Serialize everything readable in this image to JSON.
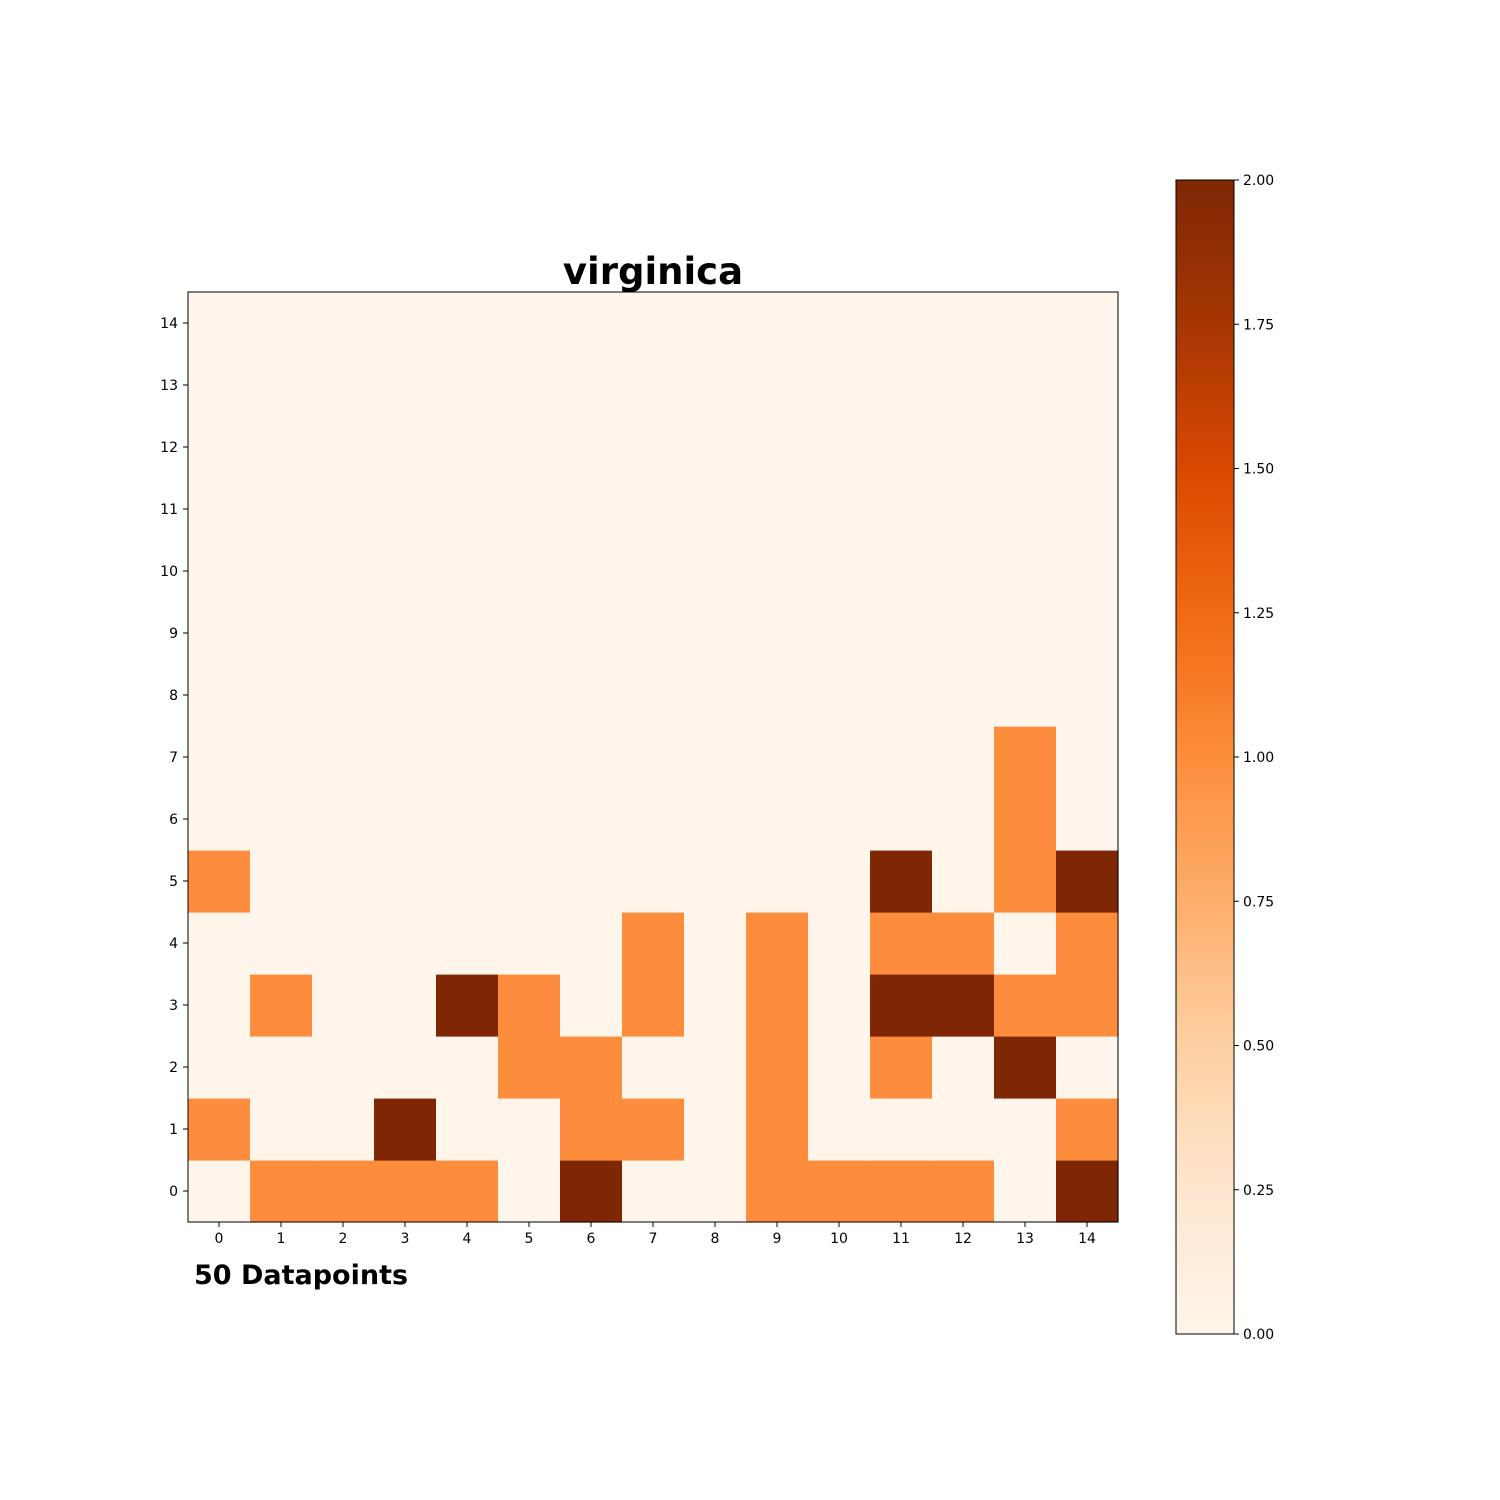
{
  "chart_data": {
    "type": "heatmap",
    "title": "virginica",
    "footnote": "50 Datapoints",
    "xlabel": "",
    "ylabel": "",
    "x": [
      0,
      1,
      2,
      3,
      4,
      5,
      6,
      7,
      8,
      9,
      10,
      11,
      12,
      13,
      14
    ],
    "y": [
      0,
      1,
      2,
      3,
      4,
      5,
      6,
      7,
      8,
      9,
      10,
      11,
      12,
      13,
      14
    ],
    "x_tick_labels": [
      "0",
      "1",
      "2",
      "3",
      "4",
      "5",
      "6",
      "7",
      "8",
      "9",
      "10",
      "11",
      "12",
      "13",
      "14"
    ],
    "y_tick_labels": [
      "0",
      "1",
      "2",
      "3",
      "4",
      "5",
      "6",
      "7",
      "8",
      "9",
      "10",
      "11",
      "12",
      "13",
      "14"
    ],
    "values": [
      [
        0,
        1,
        1,
        1,
        1,
        0,
        2,
        0,
        0,
        1,
        1,
        1,
        1,
        0,
        2
      ],
      [
        1,
        0,
        0,
        2,
        0,
        0,
        1,
        1,
        0,
        1,
        0,
        0,
        0,
        0,
        1
      ],
      [
        0,
        0,
        0,
        0,
        0,
        1,
        1,
        0,
        0,
        1,
        0,
        1,
        0,
        2,
        0
      ],
      [
        0,
        1,
        0,
        0,
        2,
        1,
        0,
        1,
        0,
        1,
        0,
        2,
        2,
        1,
        1
      ],
      [
        0,
        0,
        0,
        0,
        0,
        0,
        0,
        1,
        0,
        1,
        0,
        1,
        1,
        0,
        1
      ],
      [
        1,
        0,
        0,
        0,
        0,
        0,
        0,
        0,
        0,
        0,
        0,
        2,
        0,
        1,
        2
      ],
      [
        0,
        0,
        0,
        0,
        0,
        0,
        0,
        0,
        0,
        0,
        0,
        0,
        0,
        1,
        0
      ],
      [
        0,
        0,
        0,
        0,
        0,
        0,
        0,
        0,
        0,
        0,
        0,
        0,
        0,
        1,
        0
      ],
      [
        0,
        0,
        0,
        0,
        0,
        0,
        0,
        0,
        0,
        0,
        0,
        0,
        0,
        0,
        0
      ],
      [
        0,
        0,
        0,
        0,
        0,
        0,
        0,
        0,
        0,
        0,
        0,
        0,
        0,
        0,
        0
      ],
      [
        0,
        0,
        0,
        0,
        0,
        0,
        0,
        0,
        0,
        0,
        0,
        0,
        0,
        0,
        0
      ],
      [
        0,
        0,
        0,
        0,
        0,
        0,
        0,
        0,
        0,
        0,
        0,
        0,
        0,
        0,
        0
      ],
      [
        0,
        0,
        0,
        0,
        0,
        0,
        0,
        0,
        0,
        0,
        0,
        0,
        0,
        0,
        0
      ],
      [
        0,
        0,
        0,
        0,
        0,
        0,
        0,
        0,
        0,
        0,
        0,
        0,
        0,
        0,
        0
      ],
      [
        0,
        0,
        0,
        0,
        0,
        0,
        0,
        0,
        0,
        0,
        0,
        0,
        0,
        0,
        0
      ]
    ],
    "colormap": "Oranges",
    "colorbar": {
      "min": 0,
      "max": 2,
      "ticks": [
        0,
        0.25,
        0.5,
        0.75,
        1,
        1.25,
        1.5,
        1.75,
        2
      ],
      "tick_labels": [
        "0.00",
        "0.25",
        "0.50",
        "0.75",
        "1.00",
        "1.25",
        "1.50",
        "1.75",
        "2.00"
      ],
      "location": "right"
    },
    "grid": false
  }
}
